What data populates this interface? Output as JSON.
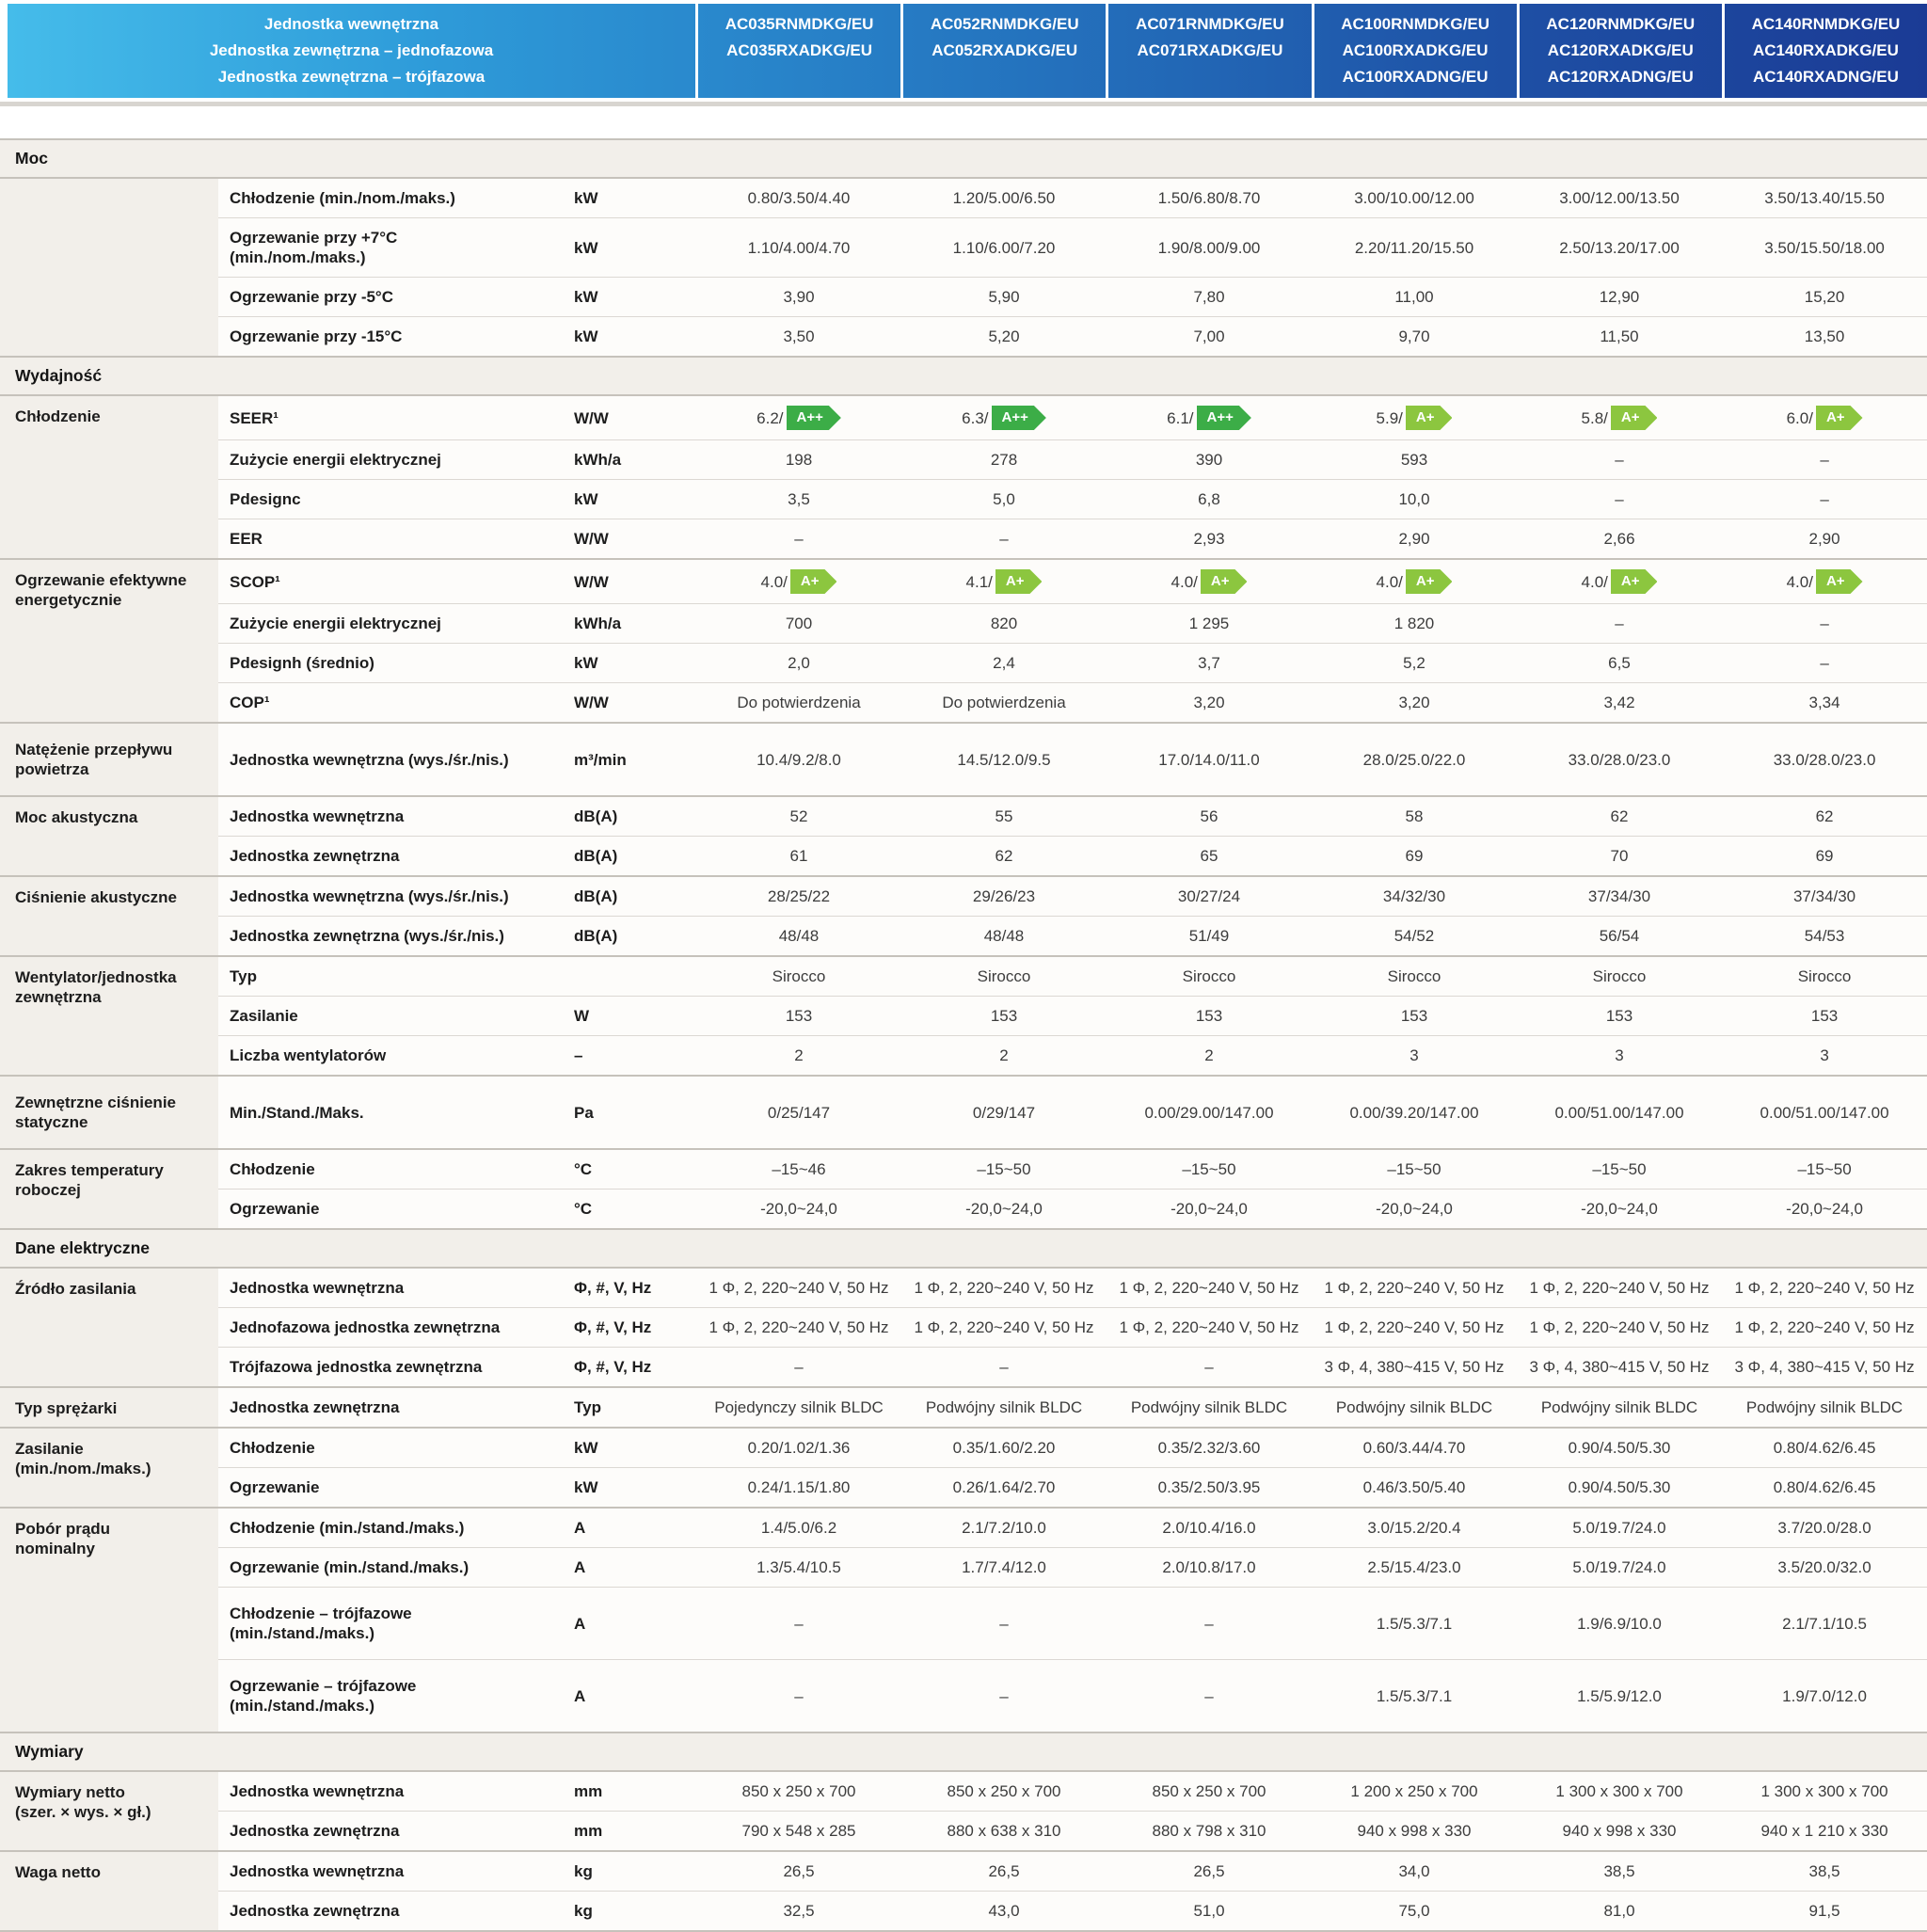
{
  "colors": {
    "badge_a_plus_plus": "#3cad47",
    "badge_a_plus": "#8cc63f",
    "header_gradient_start": "#45bcea",
    "header_gradient_end": "#1b3b95",
    "section_bg": "#f2efea"
  },
  "header": {
    "row_labels": [
      "Jednostka wewnętrzna",
      "Jednostka zewnętrzna – jednofazowa",
      "Jednostka zewnętrzna – trójfazowa"
    ],
    "model_columns": [
      [
        "AC035RNMDKG/EU",
        "AC035RXADKG/EU"
      ],
      [
        "AC052RNMDKG/EU",
        "AC052RXADKG/EU"
      ],
      [
        "AC071RNMDKG/EU",
        "AC071RXADKG/EU"
      ],
      [
        "AC100RNMDKG/EU",
        "AC100RXADKG/EU",
        "AC100RXADNG/EU"
      ],
      [
        "AC120RNMDKG/EU",
        "AC120RXADKG/EU",
        "AC120RXADNG/EU"
      ],
      [
        "AC140RNMDKG/EU",
        "AC140RXADKG/EU",
        "AC140RXADNG/EU"
      ]
    ]
  },
  "sections": [
    {
      "title": "Moc",
      "groups": [
        {
          "category": "",
          "rows": [
            {
              "param": "Chłodzenie (min./nom./maks.)",
              "unit": "kW",
              "values": [
                "0.80/3.50/4.40",
                "1.20/5.00/6.50",
                "1.50/6.80/8.70",
                "3.00/10.00/12.00",
                "3.00/12.00/13.50",
                "3.50/13.40/15.50"
              ]
            },
            {
              "param": "Ogrzewanie przy +7°C\n(min./nom./maks.)",
              "unit": "kW",
              "values": [
                "1.10/4.00/4.70",
                "1.10/6.00/7.20",
                "1.90/8.00/9.00",
                "2.20/11.20/15.50",
                "2.50/13.20/17.00",
                "3.50/15.50/18.00"
              ]
            },
            {
              "param": "Ogrzewanie przy -5°C",
              "unit": "kW",
              "values": [
                "3,90",
                "5,90",
                "7,80",
                "11,00",
                "12,90",
                "15,20"
              ]
            },
            {
              "param": "Ogrzewanie przy -15°C",
              "unit": "kW",
              "values": [
                "3,50",
                "5,20",
                "7,00",
                "9,70",
                "11,50",
                "13,50"
              ]
            }
          ]
        }
      ]
    },
    {
      "title": "Wydajność",
      "groups": [
        {
          "category": "Chłodzenie",
          "rows": [
            {
              "param": "SEER¹",
              "unit": "W/W",
              "values": [
                {
                  "text": "6.2/",
                  "badge": "A++"
                },
                {
                  "text": "6.3/",
                  "badge": "A++"
                },
                {
                  "text": "6.1/",
                  "badge": "A++"
                },
                {
                  "text": "5.9/",
                  "badge": "A+"
                },
                {
                  "text": "5.8/",
                  "badge": "A+"
                },
                {
                  "text": "6.0/",
                  "badge": "A+"
                }
              ]
            },
            {
              "param": "Zużycie energii elektrycznej",
              "unit": "kWh/a",
              "values": [
                "198",
                "278",
                "390",
                "593",
                "–",
                "–"
              ]
            },
            {
              "param": "Pdesignc",
              "unit": "kW",
              "values": [
                "3,5",
                "5,0",
                "6,8",
                "10,0",
                "–",
                "–"
              ]
            },
            {
              "param": "EER",
              "unit": "W/W",
              "values": [
                "–",
                "–",
                "2,93",
                "2,90",
                "2,66",
                "2,90"
              ]
            }
          ]
        },
        {
          "category": "Ogrzewanie efektywne\nenergetycznie",
          "rows": [
            {
              "param": "SCOP¹",
              "unit": "W/W",
              "values": [
                {
                  "text": "4.0/",
                  "badge": "A+"
                },
                {
                  "text": "4.1/",
                  "badge": "A+"
                },
                {
                  "text": "4.0/",
                  "badge": "A+"
                },
                {
                  "text": "4.0/",
                  "badge": "A+"
                },
                {
                  "text": "4.0/",
                  "badge": "A+"
                },
                {
                  "text": "4.0/",
                  "badge": "A+"
                }
              ]
            },
            {
              "param": "Zużycie energii elektrycznej",
              "unit": "kWh/a",
              "values": [
                "700",
                "820",
                "1 295",
                "1 820",
                "–",
                "–"
              ]
            },
            {
              "param": "Pdesignh (średnio)",
              "unit": "kW",
              "values": [
                "2,0",
                "2,4",
                "3,7",
                "5,2",
                "6,5",
                "–"
              ]
            },
            {
              "param": "COP¹",
              "unit": "W/W",
              "values": [
                "Do potwierdzenia",
                "Do potwierdzenia",
                "3,20",
                "3,20",
                "3,42",
                "3,34"
              ]
            }
          ]
        },
        {
          "category": "Natężenie przepływu\npowietrza",
          "rows": [
            {
              "param": "Jednostka wewnętrzna (wys./śr./nis.)",
              "unit": "m³/min",
              "tall": true,
              "values": [
                "10.4/9.2/8.0",
                "14.5/12.0/9.5",
                "17.0/14.0/11.0",
                "28.0/25.0/22.0",
                "33.0/28.0/23.0",
                "33.0/28.0/23.0"
              ]
            }
          ]
        },
        {
          "category": "Moc akustyczna",
          "rows": [
            {
              "param": "Jednostka wewnętrzna",
              "unit": "dB(A)",
              "values": [
                "52",
                "55",
                "56",
                "58",
                "62",
                "62"
              ]
            },
            {
              "param": "Jednostka zewnętrzna",
              "unit": "dB(A)",
              "values": [
                "61",
                "62",
                "65",
                "69",
                "70",
                "69"
              ]
            }
          ]
        },
        {
          "category": "Ciśnienie akustyczne",
          "rows": [
            {
              "param": "Jednostka wewnętrzna (wys./śr./nis.)",
              "unit": "dB(A)",
              "values": [
                "28/25/22",
                "29/26/23",
                "30/27/24",
                "34/32/30",
                "37/34/30",
                "37/34/30"
              ]
            },
            {
              "param": "Jednostka zewnętrzna (wys./śr./nis.)",
              "unit": "dB(A)",
              "values": [
                "48/48",
                "48/48",
                "51/49",
                "54/52",
                "56/54",
                "54/53"
              ]
            }
          ]
        },
        {
          "category": "Wentylator/jednostka\nzewnętrzna",
          "rows": [
            {
              "param": "Typ",
              "unit": "",
              "values": [
                "Sirocco",
                "Sirocco",
                "Sirocco",
                "Sirocco",
                "Sirocco",
                "Sirocco"
              ]
            },
            {
              "param": "Zasilanie",
              "unit": "W",
              "values": [
                "153",
                "153",
                "153",
                "153",
                "153",
                "153"
              ]
            },
            {
              "param": "Liczba wentylatorów",
              "unit": "–",
              "values": [
                "2",
                "2",
                "2",
                "3",
                "3",
                "3"
              ]
            }
          ]
        },
        {
          "category": "Zewnętrzne ciśnienie\nstatyczne",
          "rows": [
            {
              "param": "Min./Stand./Maks.",
              "unit": "Pa",
              "tall": true,
              "values": [
                "0/25/147",
                "0/29/147",
                "0.00/29.00/147.00",
                "0.00/39.20/147.00",
                "0.00/51.00/147.00",
                "0.00/51.00/147.00"
              ]
            }
          ]
        },
        {
          "category": "Zakres temperatury\nroboczej",
          "rows": [
            {
              "param": "Chłodzenie",
              "unit": "°C",
              "values": [
                "–15~46",
                "–15~50",
                "–15~50",
                "–15~50",
                "–15~50",
                "–15~50"
              ]
            },
            {
              "param": "Ogrzewanie",
              "unit": "°C",
              "values": [
                "-20,0~24,0",
                "-20,0~24,0",
                "-20,0~24,0",
                "-20,0~24,0",
                "-20,0~24,0",
                "-20,0~24,0"
              ]
            }
          ]
        }
      ]
    },
    {
      "title": "Dane elektryczne",
      "groups": [
        {
          "category": "Źródło zasilania",
          "rows": [
            {
              "param": "Jednostka wewnętrzna",
              "unit": "Φ, #, V, Hz",
              "values": [
                "1 Φ, 2, 220~240 V, 50 Hz",
                "1 Φ, 2, 220~240 V, 50 Hz",
                "1 Φ, 2, 220~240 V, 50 Hz",
                "1 Φ, 2, 220~240 V, 50 Hz",
                "1 Φ, 2, 220~240 V, 50 Hz",
                "1 Φ, 2, 220~240 V, 50 Hz"
              ]
            },
            {
              "param": "Jednofazowa jednostka zewnętrzna",
              "unit": "Φ, #, V, Hz",
              "values": [
                "1 Φ, 2, 220~240 V, 50 Hz",
                "1 Φ, 2, 220~240 V, 50 Hz",
                "1 Φ, 2, 220~240 V, 50 Hz",
                "1 Φ, 2, 220~240 V, 50 Hz",
                "1 Φ, 2, 220~240 V, 50 Hz",
                "1 Φ, 2, 220~240 V, 50 Hz"
              ]
            },
            {
              "param": "Trójfazowa jednostka zewnętrzna",
              "unit": "Φ, #, V, Hz",
              "values": [
                "–",
                "–",
                "–",
                "3 Φ, 4, 380~415 V, 50 Hz",
                "3 Φ, 4, 380~415 V, 50 Hz",
                "3 Φ, 4, 380~415 V, 50 Hz"
              ]
            }
          ]
        },
        {
          "category": "Typ sprężarki",
          "rows": [
            {
              "param": "Jednostka zewnętrzna",
              "unit": "Typ",
              "values": [
                "Pojedynczy silnik BLDC",
                "Podwójny silnik BLDC",
                "Podwójny silnik BLDC",
                "Podwójny silnik BLDC",
                "Podwójny silnik BLDC",
                "Podwójny silnik BLDC"
              ]
            }
          ]
        },
        {
          "category": "Zasilanie\n(min./nom./maks.)",
          "rows": [
            {
              "param": "Chłodzenie",
              "unit": "kW",
              "values": [
                "0.20/1.02/1.36",
                "0.35/1.60/2.20",
                "0.35/2.32/3.60",
                "0.60/3.44/4.70",
                "0.90/4.50/5.30",
                "0.80/4.62/6.45"
              ]
            },
            {
              "param": "Ogrzewanie",
              "unit": "kW",
              "values": [
                "0.24/1.15/1.80",
                "0.26/1.64/2.70",
                "0.35/2.50/3.95",
                "0.46/3.50/5.40",
                "0.90/4.50/5.30",
                "0.80/4.62/6.45"
              ]
            }
          ]
        },
        {
          "category": "Pobór prądu\nnominalny",
          "rows": [
            {
              "param": "Chłodzenie (min./stand./maks.)",
              "unit": "A",
              "values": [
                "1.4/5.0/6.2",
                "2.1/7.2/10.0",
                "2.0/10.4/16.0",
                "3.0/15.2/20.4",
                "5.0/19.7/24.0",
                "3.7/20.0/28.0"
              ]
            },
            {
              "param": "Ogrzewanie (min./stand./maks.)",
              "unit": "A",
              "values": [
                "1.3/5.4/10.5",
                "1.7/7.4/12.0",
                "2.0/10.8/17.0",
                "2.5/15.4/23.0",
                "5.0/19.7/24.0",
                "3.5/20.0/32.0"
              ]
            },
            {
              "param": "Chłodzenie – trójfazowe\n(min./stand./maks.)",
              "unit": "A",
              "tall": true,
              "values": [
                "–",
                "–",
                "–",
                "1.5/5.3/7.1",
                "1.9/6.9/10.0",
                "2.1/7.1/10.5"
              ]
            },
            {
              "param": "Ogrzewanie – trójfazowe\n(min./stand./maks.)",
              "unit": "A",
              "tall": true,
              "values": [
                "–",
                "–",
                "–",
                "1.5/5.3/7.1",
                "1.5/5.9/12.0",
                "1.9/7.0/12.0"
              ]
            }
          ]
        }
      ]
    },
    {
      "title": "Wymiary",
      "groups": [
        {
          "category": "Wymiary netto\n(szer. × wys. × gł.)",
          "rows": [
            {
              "param": "Jednostka wewnętrzna",
              "unit": "mm",
              "values": [
                "850 x 250 x 700",
                "850 x 250 x 700",
                "850 x 250 x 700",
                "1 200 x 250 x 700",
                "1 300 x 300 x 700",
                "1 300 x 300 x 700"
              ]
            },
            {
              "param": "Jednostka zewnętrzna",
              "unit": "mm",
              "values": [
                "790 x 548 x 285",
                "880 x 638 x 310",
                "880 x 798 x 310",
                "940 x 998 x 330",
                "940 x 998 x 330",
                "940 x 1 210 x 330"
              ]
            }
          ]
        },
        {
          "category": "Waga netto",
          "rows": [
            {
              "param": "Jednostka wewnętrzna",
              "unit": "kg",
              "values": [
                "26,5",
                "26,5",
                "26,5",
                "34,0",
                "38,5",
                "38,5"
              ]
            },
            {
              "param": "Jednostka zewnętrzna",
              "unit": "kg",
              "values": [
                "32,5",
                "43,0",
                "51,0",
                "75,0",
                "81,0",
                "91,5"
              ]
            }
          ]
        }
      ]
    }
  ]
}
